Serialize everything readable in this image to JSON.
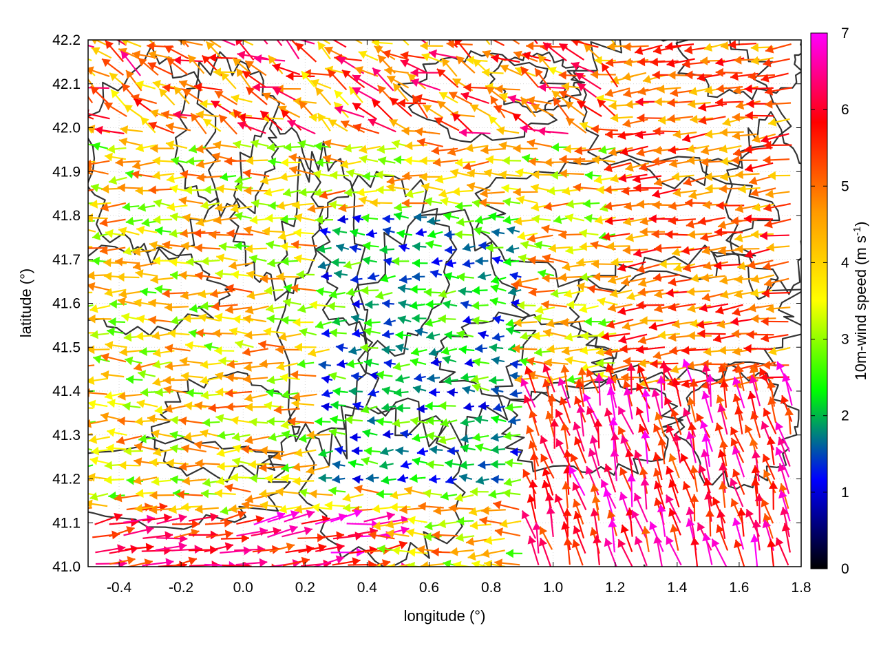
{
  "chart_data": {
    "type": "vector-field",
    "xlabel": "longitude (°)",
    "ylabel": "latitude (°)",
    "xlim": [
      -0.5,
      1.8
    ],
    "ylim": [
      41.0,
      42.2
    ],
    "xticks": [
      -0.4,
      -0.2,
      0.0,
      0.2,
      0.4,
      0.6,
      0.8,
      1.0,
      1.2,
      1.4,
      1.6,
      1.8
    ],
    "xtick_labels": [
      "-0.4",
      "-0.2",
      "0.0",
      "0.2",
      "0.4",
      "0.6",
      "0.8",
      "1.0",
      "1.2",
      "1.4",
      "1.6",
      "1.8"
    ],
    "yticks": [
      41.0,
      41.1,
      41.2,
      41.3,
      41.4,
      41.5,
      41.6,
      41.7,
      41.8,
      41.9,
      42.0,
      42.1,
      42.2
    ],
    "ytick_labels": [
      "41.0",
      "41.1",
      "41.2",
      "41.3",
      "41.4",
      "41.5",
      "41.6",
      "41.7",
      "41.8",
      "41.9",
      "42.0",
      "42.1",
      "42.2"
    ],
    "grid": true,
    "colorbar": {
      "label": "10m-wind speed (m s",
      "label_superscript": "-1",
      "label_close": ")",
      "range": [
        0,
        7
      ],
      "ticks": [
        0,
        1,
        2,
        3,
        4,
        5,
        6,
        7
      ],
      "tick_labels": [
        "0",
        "1",
        "2",
        "3",
        "4",
        "5",
        "6",
        "7"
      ],
      "colors": [
        "#000000",
        "#0000ff",
        "#00ff00",
        "#ffff00",
        "#ff9900",
        "#ff0000",
        "#ff00ff"
      ]
    },
    "contour_color": "#333333",
    "wind_field_regimes": [
      {
        "region": "west",
        "direction": "westward",
        "speed_range": [
          3,
          5.5
        ]
      },
      {
        "region": "central",
        "direction": "westward",
        "speed_range": [
          1,
          3
        ]
      },
      {
        "region": "east",
        "direction": "westward",
        "speed_range": [
          4,
          6
        ]
      },
      {
        "region": "southeast",
        "direction": "northward",
        "speed_range": [
          5,
          7
        ]
      },
      {
        "region": "southwest coast",
        "direction": "eastward",
        "speed_range": [
          5,
          7
        ]
      }
    ]
  }
}
